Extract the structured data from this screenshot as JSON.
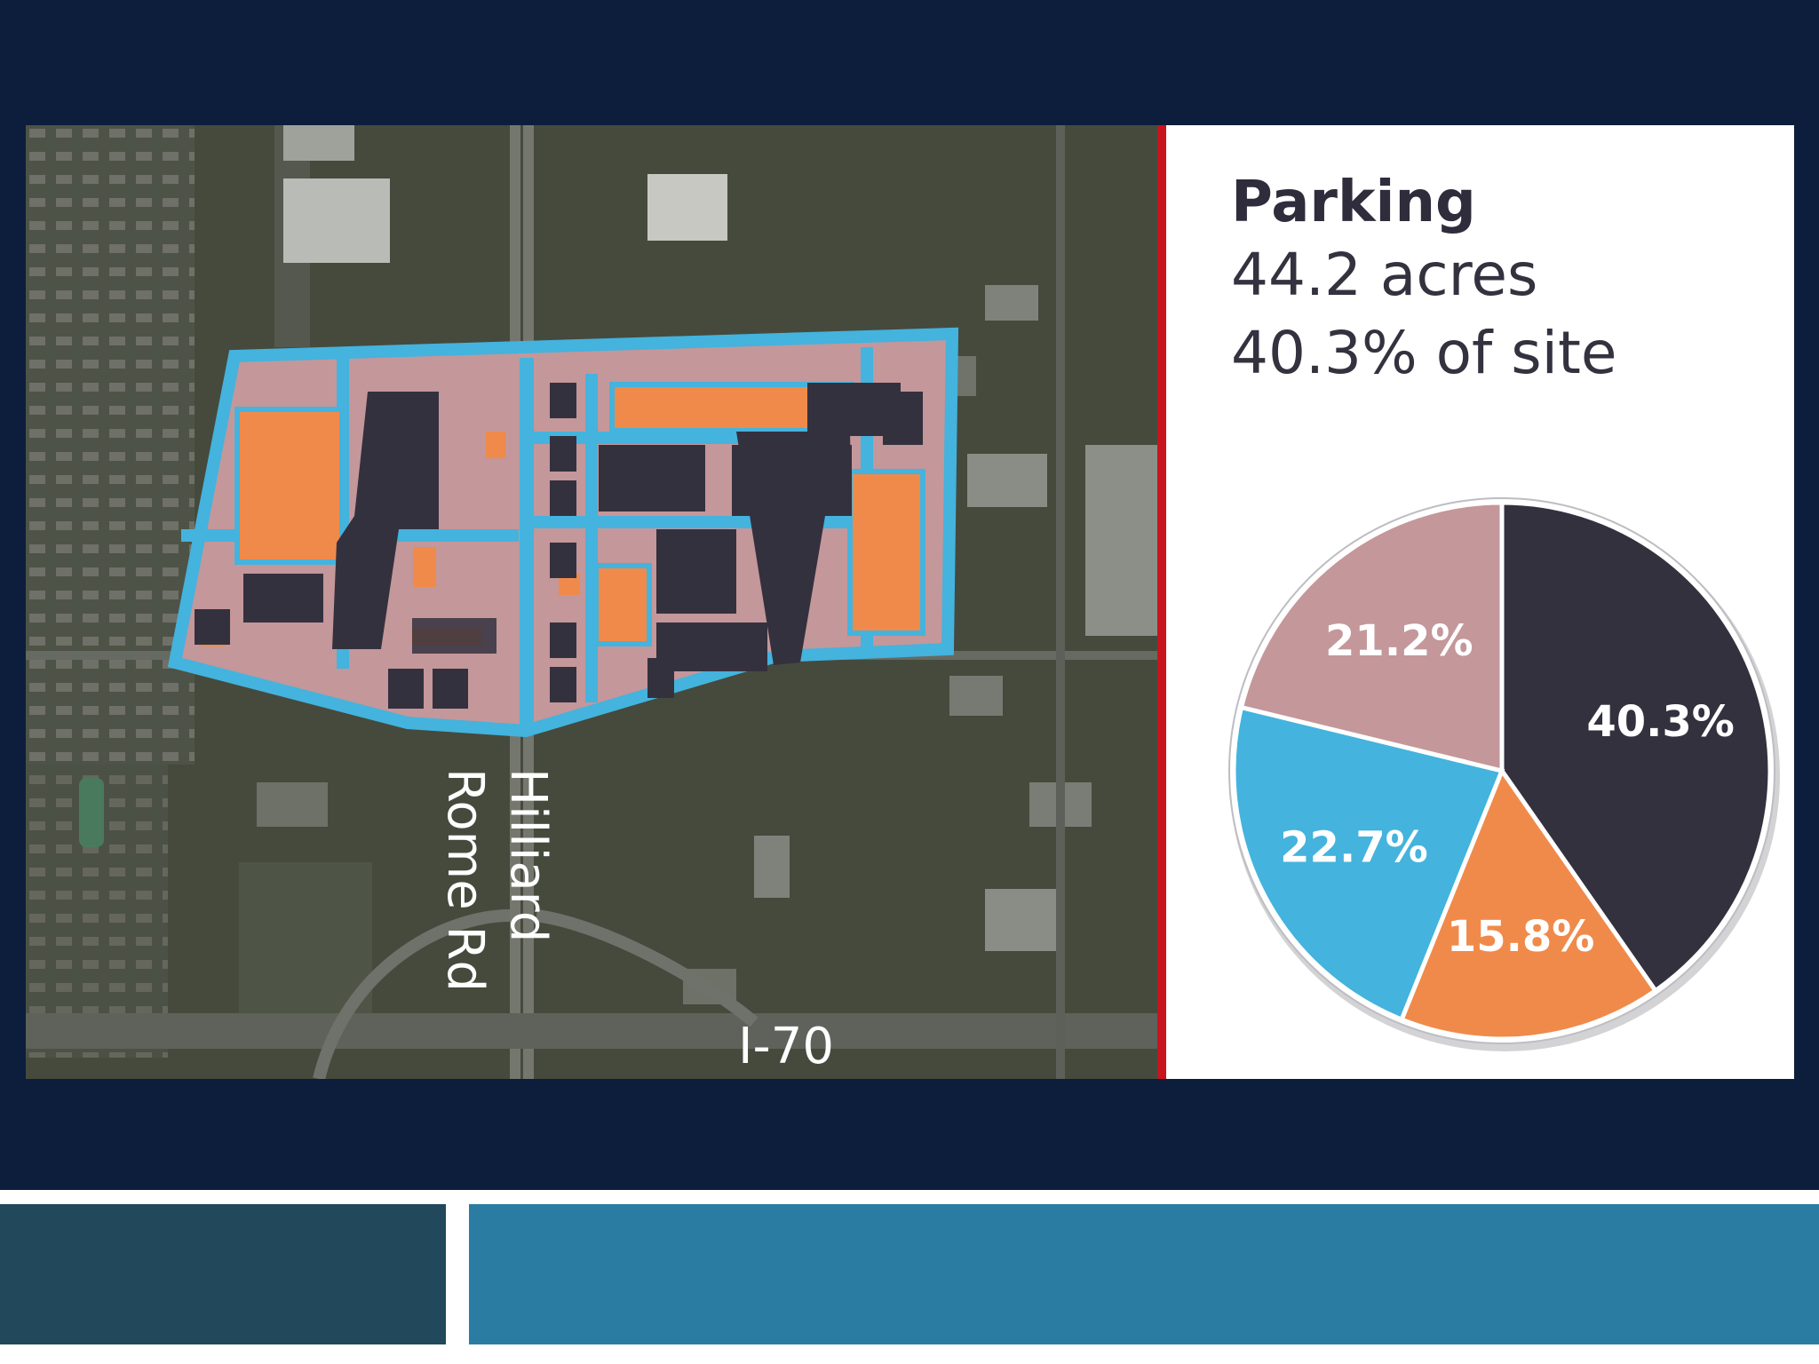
{
  "colors": {
    "background": "#0d1e3c",
    "parking": "#34313f",
    "buildings": "#f08a4b",
    "sidewalks": "#44b3dd",
    "green_space": "#c4979a",
    "divider": "#c8141e",
    "footer_left": "#21485b",
    "footer_right": "#2a7ca3"
  },
  "map": {
    "labels": {
      "hilliard": "Hilliard",
      "rome_rd": "Rome Rd",
      "i70": "I-70"
    }
  },
  "info": {
    "title": "Parking",
    "acres": "44.2 acres",
    "share": "40.3% of site"
  },
  "chart_data": {
    "type": "pie",
    "title": "Parking",
    "slices": [
      {
        "label": "40.3%",
        "value": 40.3,
        "color": "#34313f"
      },
      {
        "label": "15.8%",
        "value": 15.8,
        "color": "#f08a4b"
      },
      {
        "label": "22.7%",
        "value": 22.7,
        "color": "#44b3dd"
      },
      {
        "label": "21.2%",
        "value": 21.2,
        "color": "#c4979a"
      }
    ]
  }
}
